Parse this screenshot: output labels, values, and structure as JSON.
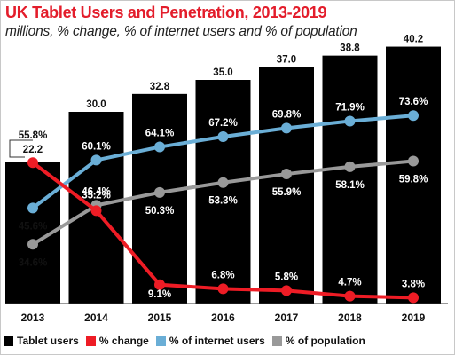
{
  "title": "UK Tablet Users and Penetration, 2013-2019",
  "subtitle": "millions, % change, % of internet users and % of population",
  "chart_data": {
    "type": "bar",
    "title": "UK Tablet Users and Penetration, 2013-2019",
    "subtitle": "millions, % change, % of internet users and % of population",
    "categories": [
      "2013",
      "2014",
      "2015",
      "2016",
      "2017",
      "2018",
      "2019"
    ],
    "grid": false,
    "legend_position": "bottom",
    "series": [
      {
        "name": "Tablet users",
        "kind": "bar",
        "color": "#000000",
        "label_color": "#ffffff",
        "values": [
          22.2,
          30.0,
          32.8,
          35.0,
          37.0,
          38.8,
          40.2
        ],
        "labels": [
          "22.2",
          "30.0",
          "32.8",
          "35.0",
          "37.0",
          "38.8",
          "40.2"
        ]
      },
      {
        "name": "% change",
        "kind": "line",
        "color": "#ee1c25",
        "values": [
          55.8,
          35.2,
          9.1,
          6.8,
          5.8,
          4.7,
          3.8
        ],
        "labels": [
          "55.8%",
          "35.2%",
          "9.1%",
          "6.8%",
          "5.8%",
          "4.7%",
          "3.8%"
        ]
      },
      {
        "name": "% of internet users",
        "kind": "line",
        "color": "#6aaed6",
        "values": [
          45.6,
          60.1,
          64.1,
          67.2,
          69.8,
          71.9,
          73.6
        ],
        "labels": [
          "45.6%",
          "60.1%",
          "64.1%",
          "67.2%",
          "69.8%",
          "71.9%",
          "73.6%"
        ]
      },
      {
        "name": "% of population",
        "kind": "line",
        "color": "#999999",
        "values": [
          34.6,
          46.4,
          50.3,
          53.3,
          55.9,
          58.1,
          59.8
        ],
        "labels": [
          "34.6%",
          "46.4%",
          "50.3%",
          "53.3%",
          "55.9%",
          "58.1%",
          "59.8%"
        ]
      }
    ]
  }
}
